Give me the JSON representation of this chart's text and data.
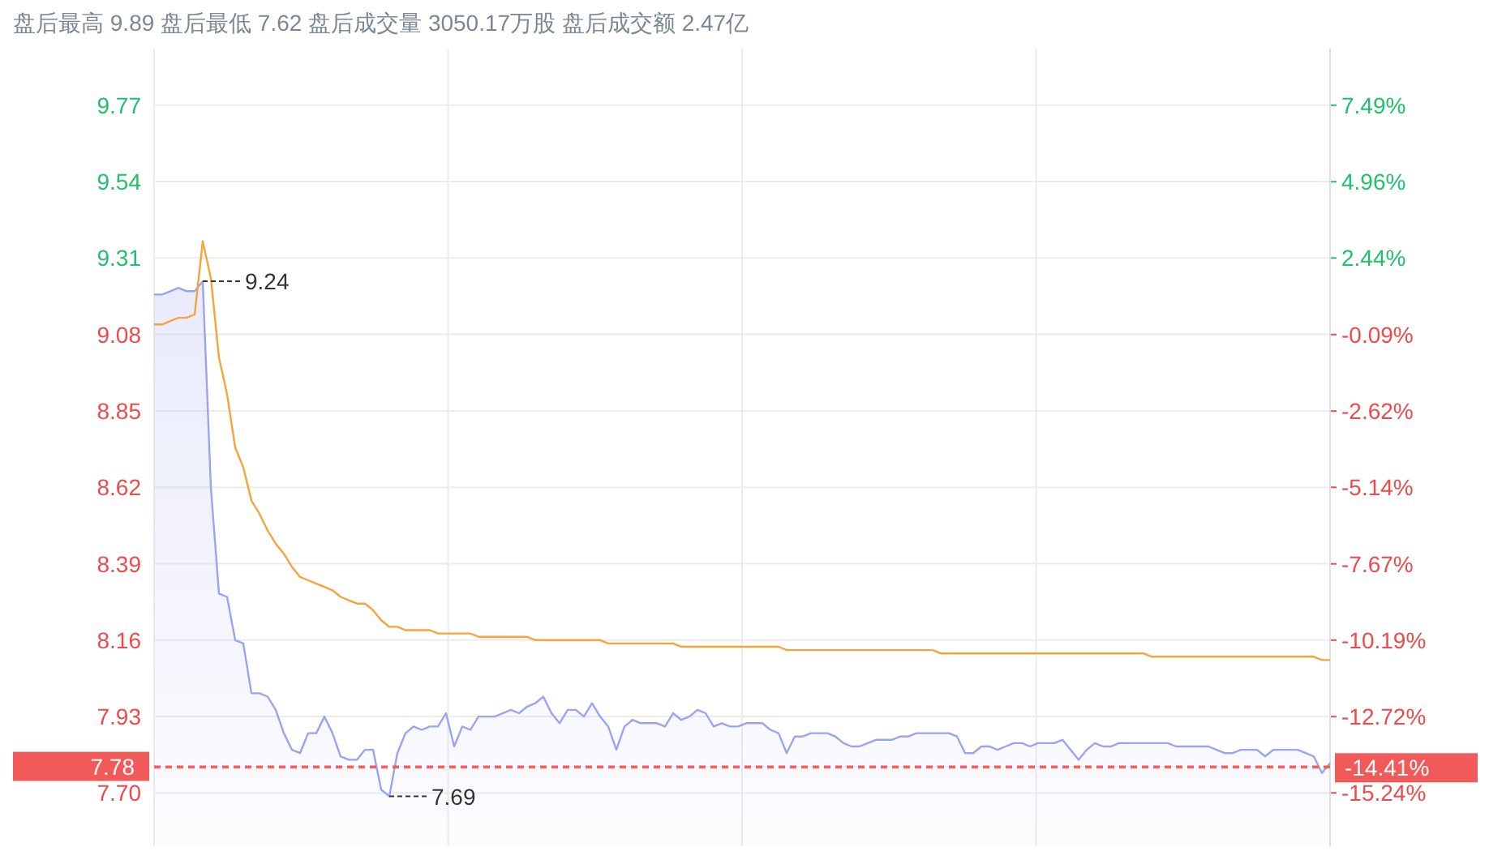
{
  "chart_data": {
    "type": "line",
    "title": "盘后最高 9.89 盘后最低 7.62 盘后成交量 3050.17万股 盘后成交额 2.47亿",
    "categories": [
      null,
      null,
      null,
      null,
      null,
      null,
      null,
      null,
      null,
      null,
      null,
      null,
      null,
      null,
      null,
      null,
      null,
      null,
      null,
      null,
      null,
      null,
      null,
      null,
      null,
      null,
      null,
      null,
      null,
      null,
      null,
      null,
      null,
      null,
      null,
      null,
      null,
      null,
      null,
      null,
      null,
      null,
      null,
      null,
      null,
      null,
      null,
      null,
      null,
      null,
      null,
      null,
      null,
      null,
      null,
      null,
      null,
      null,
      null,
      null,
      null,
      null,
      null,
      null,
      null,
      null,
      null,
      null,
      null,
      null,
      null,
      null,
      null,
      null,
      null,
      null,
      null,
      null,
      null,
      null,
      null,
      null,
      null,
      null,
      null,
      null,
      null,
      null,
      null,
      null,
      null,
      null,
      null,
      null,
      null,
      null,
      null,
      null,
      null,
      null,
      null,
      null,
      null,
      null,
      null,
      null,
      null,
      null,
      null,
      null,
      null,
      null,
      null,
      null,
      null,
      null,
      null,
      null,
      null,
      null,
      null,
      null,
      null,
      null,
      null,
      null,
      null,
      null,
      null,
      null,
      null,
      null,
      null,
      null,
      null,
      null,
      null,
      null,
      null,
      null,
      null,
      null,
      null,
      null,
      null,
      null
    ],
    "series": [
      {
        "type": "area",
        "color": "#9aa4f0",
        "values": [
          9.2,
          9.2,
          9.21,
          9.22,
          9.21,
          9.21,
          9.24,
          8.62,
          8.3,
          8.29,
          8.16,
          8.15,
          8.0,
          8.0,
          7.99,
          7.95,
          7.88,
          7.83,
          7.82,
          7.88,
          7.88,
          7.93,
          7.88,
          7.81,
          7.8,
          7.8,
          7.83,
          7.83,
          7.71,
          7.69,
          7.82,
          7.88,
          7.9,
          7.89,
          7.9,
          7.9,
          7.94,
          7.84,
          7.9,
          7.89,
          7.93,
          7.93,
          7.93,
          7.94,
          7.95,
          7.94,
          7.96,
          7.97,
          7.99,
          7.94,
          7.91,
          7.95,
          7.95,
          7.93,
          7.97,
          7.93,
          7.9,
          7.83,
          7.9,
          7.92,
          7.91,
          7.91,
          7.91,
          7.9,
          7.94,
          7.92,
          7.93,
          7.95,
          7.94,
          7.9,
          7.91,
          7.9,
          7.9,
          7.91,
          7.91,
          7.91,
          7.89,
          7.88,
          7.82,
          7.87,
          7.87,
          7.88,
          7.88,
          7.88,
          7.87,
          7.85,
          7.84,
          7.84,
          7.85,
          7.86,
          7.86,
          7.86,
          7.87,
          7.87,
          7.88,
          7.88,
          7.88,
          7.88,
          7.88,
          7.87,
          7.82,
          7.82,
          7.84,
          7.84,
          7.83,
          7.84,
          7.85,
          7.85,
          7.84,
          7.85,
          7.85,
          7.85,
          7.86,
          7.83,
          7.8,
          7.83,
          7.85,
          7.84,
          7.84,
          7.85,
          7.85,
          7.85,
          7.85,
          7.85,
          7.85,
          7.85,
          7.84,
          7.84,
          7.84,
          7.84,
          7.84,
          7.83,
          7.82,
          7.82,
          7.83,
          7.83,
          7.83,
          7.81,
          7.83,
          7.83,
          7.83,
          7.83,
          7.82,
          7.81,
          7.76,
          7.79
        ]
      },
      {
        "type": "line",
        "color": "#f7a43a",
        "values": [
          9.11,
          9.11,
          9.12,
          9.13,
          9.13,
          9.14,
          9.36,
          9.25,
          9.01,
          8.9,
          8.74,
          8.68,
          8.58,
          8.54,
          8.49,
          8.45,
          8.42,
          8.38,
          8.35,
          8.34,
          8.33,
          8.32,
          8.31,
          8.29,
          8.28,
          8.27,
          8.27,
          8.25,
          8.22,
          8.2,
          8.2,
          8.19,
          8.19,
          8.19,
          8.19,
          8.18,
          8.18,
          8.18,
          8.18,
          8.18,
          8.17,
          8.17,
          8.17,
          8.17,
          8.17,
          8.17,
          8.17,
          8.16,
          8.16,
          8.16,
          8.16,
          8.16,
          8.16,
          8.16,
          8.16,
          8.16,
          8.15,
          8.15,
          8.15,
          8.15,
          8.15,
          8.15,
          8.15,
          8.15,
          8.15,
          8.14,
          8.14,
          8.14,
          8.14,
          8.14,
          8.14,
          8.14,
          8.14,
          8.14,
          8.14,
          8.14,
          8.14,
          8.14,
          8.13,
          8.13,
          8.13,
          8.13,
          8.13,
          8.13,
          8.13,
          8.13,
          8.13,
          8.13,
          8.13,
          8.13,
          8.13,
          8.13,
          8.13,
          8.13,
          8.13,
          8.13,
          8.13,
          8.12,
          8.12,
          8.12,
          8.12,
          8.12,
          8.12,
          8.12,
          8.12,
          8.12,
          8.12,
          8.12,
          8.12,
          8.12,
          8.12,
          8.12,
          8.12,
          8.12,
          8.12,
          8.12,
          8.12,
          8.12,
          8.12,
          8.12,
          8.12,
          8.12,
          8.12,
          8.11,
          8.11,
          8.11,
          8.11,
          8.11,
          8.11,
          8.11,
          8.11,
          8.11,
          8.11,
          8.11,
          8.11,
          8.11,
          8.11,
          8.11,
          8.11,
          8.11,
          8.11,
          8.11,
          8.11,
          8.11,
          8.1,
          8.1
        ]
      }
    ],
    "ylim": [
      7.54,
      9.94
    ],
    "yticks": [
      {
        "value": 7.7,
        "label": "7.70"
      },
      7.93,
      8.16,
      8.39,
      8.62,
      8.85,
      9.08,
      9.31,
      9.54,
      9.77
    ],
    "y2lim": [
      -17.0,
      9.36
    ],
    "y2ticks": [
      {
        "value": -15.24,
        "label": "-15.24%"
      },
      {
        "value": -12.72,
        "label": "-12.72%"
      },
      {
        "value": -10.19,
        "label": "-10.19%"
      },
      {
        "value": -7.67,
        "label": "-7.67%"
      },
      {
        "value": -5.14,
        "label": "-5.14%"
      },
      {
        "value": -2.62,
        "label": "-2.62%"
      },
      {
        "value": -0.09,
        "label": "-0.09%"
      },
      {
        "value": 2.44,
        "label": "2.44%"
      },
      {
        "value": 4.96,
        "label": "4.96%"
      },
      {
        "value": 7.49,
        "label": "7.49%"
      }
    ],
    "ref_lines": [
      {
        "axis": "y",
        "value": 7.78,
        "label": "7.78",
        "color": "#f25a5a",
        "line_style": "dashed"
      },
      {
        "axis": "y2",
        "value": -14.41,
        "label": "-14.41%",
        "color": "#f25a5a",
        "line_style": "dashed"
      }
    ],
    "annotations": [
      "9.24",
      "7.69"
    ],
    "grid": true,
    "marker": "none"
  }
}
